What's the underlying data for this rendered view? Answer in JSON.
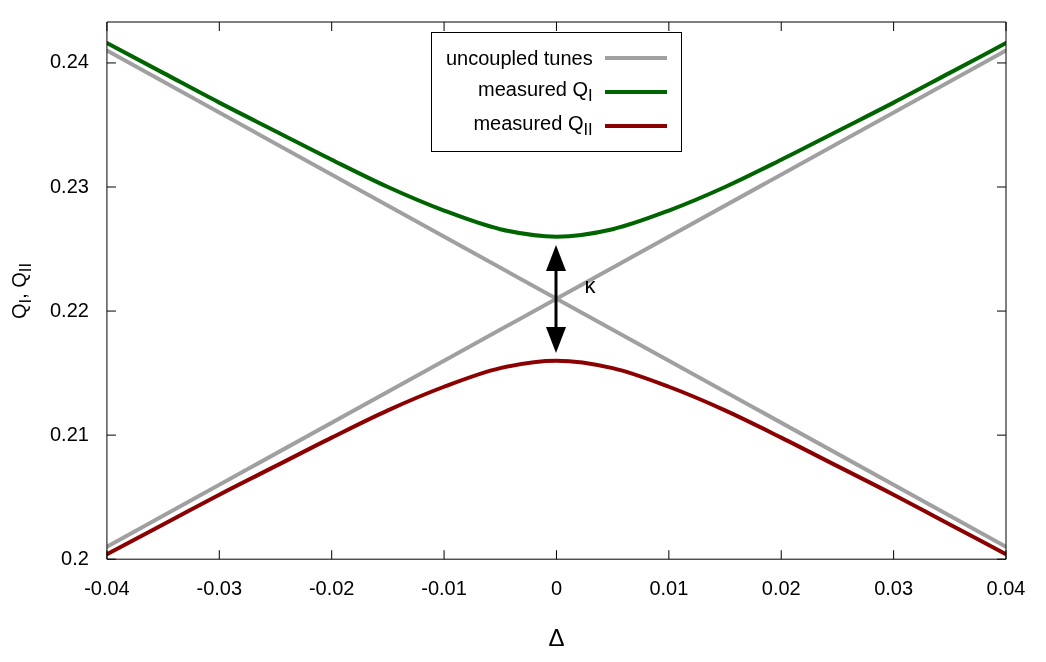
{
  "chart_data": {
    "type": "line",
    "xlabel": "Δ",
    "ylabel": "Q$_{I}$, Q$_{II}$",
    "xlim": [
      -0.04,
      0.04
    ],
    "xticks": [
      -0.04,
      -0.03,
      -0.02,
      -0.01,
      0,
      0.01,
      0.02,
      0.03,
      0.04
    ],
    "ylim": [
      0.2,
      0.2433
    ],
    "yticks": [
      0.2,
      0.21,
      0.22,
      0.23,
      0.24
    ],
    "grid": false,
    "legend": "top",
    "marker": "none",
    "line_style": "solid",
    "annotations": [
      {
        "text": "κ",
        "x": 0,
        "y": 0.221
      }
    ],
    "series": [
      {
        "name": "uncoupled tunes",
        "color": "#a0a0a0",
        "x": [
          -0.04,
          0.04
        ],
        "values": [
          0.241,
          0.201
        ]
      },
      {
        "color": "#a0a0a0",
        "x": [
          -0.04,
          0.04
        ],
        "values": [
          0.201,
          0.241
        ]
      },
      {
        "name": "measured Q$_{I}$",
        "color": "#006400",
        "x": [
          -0.04,
          -0.035,
          -0.03,
          -0.025,
          -0.02,
          -0.015,
          -0.01,
          -0.005,
          0,
          0.005,
          0.01,
          0.015,
          0.02,
          0.025,
          0.03,
          0.035,
          0.04
        ],
        "values": [
          0.2416,
          0.2392,
          0.2368,
          0.2345,
          0.2322,
          0.23,
          0.2281,
          0.2266,
          0.226,
          0.2266,
          0.2281,
          0.23,
          0.2322,
          0.2345,
          0.2368,
          0.2392,
          0.2416
        ]
      },
      {
        "name": "measured Q$_{II}$",
        "color": "#8b0000",
        "x": [
          -0.04,
          -0.035,
          -0.03,
          -0.025,
          -0.02,
          -0.015,
          -0.01,
          -0.005,
          0,
          0.005,
          0.01,
          0.015,
          0.02,
          0.025,
          0.03,
          0.035,
          0.04
        ],
        "values": [
          0.2004,
          0.2028,
          0.2052,
          0.2075,
          0.2098,
          0.212,
          0.2139,
          0.2154,
          0.216,
          0.2154,
          0.2139,
          0.212,
          0.2098,
          0.2075,
          0.2052,
          0.2028,
          0.2004
        ]
      }
    ]
  }
}
